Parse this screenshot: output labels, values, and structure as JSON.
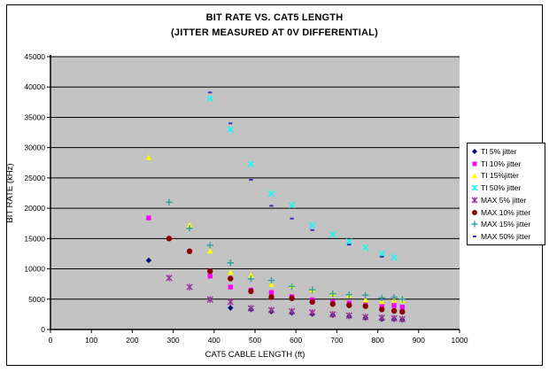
{
  "title": "BIT RATE VS. CAT5 LENGTH",
  "subtitle": "(JITTER MEASURED AT 0V DIFFERENTIAL)",
  "colors": {
    "plot_background": "#c3c3c3",
    "gridline": "#000000",
    "frame_border": "#000000",
    "page_background": "#ffffff"
  },
  "chart_data": {
    "type": "scatter",
    "title": "BIT RATE VS. CAT5 LENGTH",
    "subtitle": "(JITTER MEASURED AT 0V DIFFERENTIAL)",
    "xlabel": "CAT5 CABLE LENGTH (ft)",
    "ylabel": "BIT RATE (kHz)",
    "xlim": [
      0,
      1000
    ],
    "ylim": [
      0,
      45000
    ],
    "x_tick_step": 100,
    "y_tick_step": 5000,
    "x_ticks": [
      0,
      100,
      200,
      300,
      400,
      500,
      600,
      700,
      800,
      900,
      1000
    ],
    "y_ticks": [
      0,
      5000,
      10000,
      15000,
      20000,
      25000,
      30000,
      35000,
      40000,
      45000
    ],
    "grid": "horizontal",
    "legend_position": "right",
    "series": [
      {
        "name": "TI 5% jitter",
        "marker": "diamond",
        "color": "#000080",
        "points": [
          [
            240,
            11400
          ],
          [
            440,
            3560
          ],
          [
            490,
            3300
          ],
          [
            540,
            2950
          ],
          [
            590,
            2750
          ],
          [
            640,
            2550
          ],
          [
            690,
            2350
          ],
          [
            730,
            2150
          ],
          [
            770,
            1900
          ],
          [
            810,
            1700
          ],
          [
            840,
            1680
          ],
          [
            860,
            1580
          ]
        ]
      },
      {
        "name": "TI 10% jitter",
        "marker": "square",
        "color": "#ff00ff",
        "points": [
          [
            240,
            18400
          ],
          [
            390,
            8800
          ],
          [
            440,
            7000
          ],
          [
            490,
            6500
          ],
          [
            540,
            6100
          ],
          [
            590,
            5400
          ],
          [
            640,
            4900
          ],
          [
            690,
            4500
          ],
          [
            730,
            4350
          ],
          [
            770,
            4250
          ],
          [
            810,
            4050
          ],
          [
            840,
            3950
          ],
          [
            860,
            3700
          ]
        ]
      },
      {
        "name": "TI 15%jitter",
        "marker": "triangle",
        "color": "#ffff00",
        "points": [
          [
            240,
            28400
          ],
          [
            340,
            17300
          ],
          [
            390,
            13000
          ],
          [
            440,
            9500
          ],
          [
            490,
            9000
          ],
          [
            540,
            7500
          ],
          [
            590,
            7250
          ],
          [
            640,
            6600
          ],
          [
            690,
            5950
          ],
          [
            730,
            5700
          ],
          [
            770,
            4900
          ],
          [
            810,
            4650
          ],
          [
            840,
            4900
          ],
          [
            860,
            4850
          ]
        ]
      },
      {
        "name": "TI 50% jitter",
        "marker": "x",
        "color": "#00ffff",
        "points": [
          [
            390,
            38100
          ],
          [
            440,
            33000
          ],
          [
            490,
            27300
          ],
          [
            540,
            22400
          ],
          [
            590,
            20500
          ],
          [
            640,
            17200
          ],
          [
            690,
            15700
          ],
          [
            730,
            14500
          ],
          [
            770,
            13500
          ],
          [
            810,
            12500
          ],
          [
            840,
            11900
          ]
        ]
      },
      {
        "name": "MAX 5% jitter",
        "marker": "asterisk",
        "color": "#993399",
        "points": [
          [
            290,
            8500
          ],
          [
            340,
            7000
          ],
          [
            390,
            4950
          ],
          [
            440,
            4550
          ],
          [
            490,
            3500
          ],
          [
            540,
            3200
          ],
          [
            590,
            3000
          ],
          [
            640,
            2800
          ],
          [
            690,
            2500
          ],
          [
            730,
            2300
          ],
          [
            770,
            2050
          ],
          [
            810,
            1950
          ],
          [
            840,
            1850
          ],
          [
            860,
            1700
          ]
        ]
      },
      {
        "name": "MAX 10% jitter",
        "marker": "circle",
        "color": "#8b0000",
        "points": [
          [
            290,
            15000
          ],
          [
            340,
            12900
          ],
          [
            390,
            9600
          ],
          [
            440,
            8400
          ],
          [
            490,
            6300
          ],
          [
            540,
            5350
          ],
          [
            590,
            5150
          ],
          [
            640,
            4550
          ],
          [
            690,
            4200
          ],
          [
            730,
            4000
          ],
          [
            770,
            3850
          ],
          [
            810,
            3300
          ],
          [
            840,
            3070
          ],
          [
            860,
            2930
          ]
        ]
      },
      {
        "name": "MAX 15% jitter",
        "marker": "plus",
        "color": "#2e9e9e",
        "points": [
          [
            290,
            21000
          ],
          [
            340,
            16700
          ],
          [
            390,
            13900
          ],
          [
            440,
            11000
          ],
          [
            490,
            8350
          ],
          [
            540,
            8100
          ],
          [
            590,
            7100
          ],
          [
            640,
            6550
          ],
          [
            690,
            5900
          ],
          [
            730,
            5750
          ],
          [
            770,
            5650
          ],
          [
            810,
            5200
          ],
          [
            840,
            5300
          ],
          [
            860,
            5000
          ]
        ]
      },
      {
        "name": "MAX 50% jitter",
        "marker": "dash",
        "color": "#3333b3",
        "points": [
          [
            390,
            39100
          ],
          [
            440,
            34000
          ],
          [
            490,
            24700
          ],
          [
            540,
            20400
          ],
          [
            590,
            18300
          ],
          [
            640,
            16400
          ],
          [
            730,
            14000
          ],
          [
            810,
            12000
          ]
        ]
      }
    ]
  }
}
